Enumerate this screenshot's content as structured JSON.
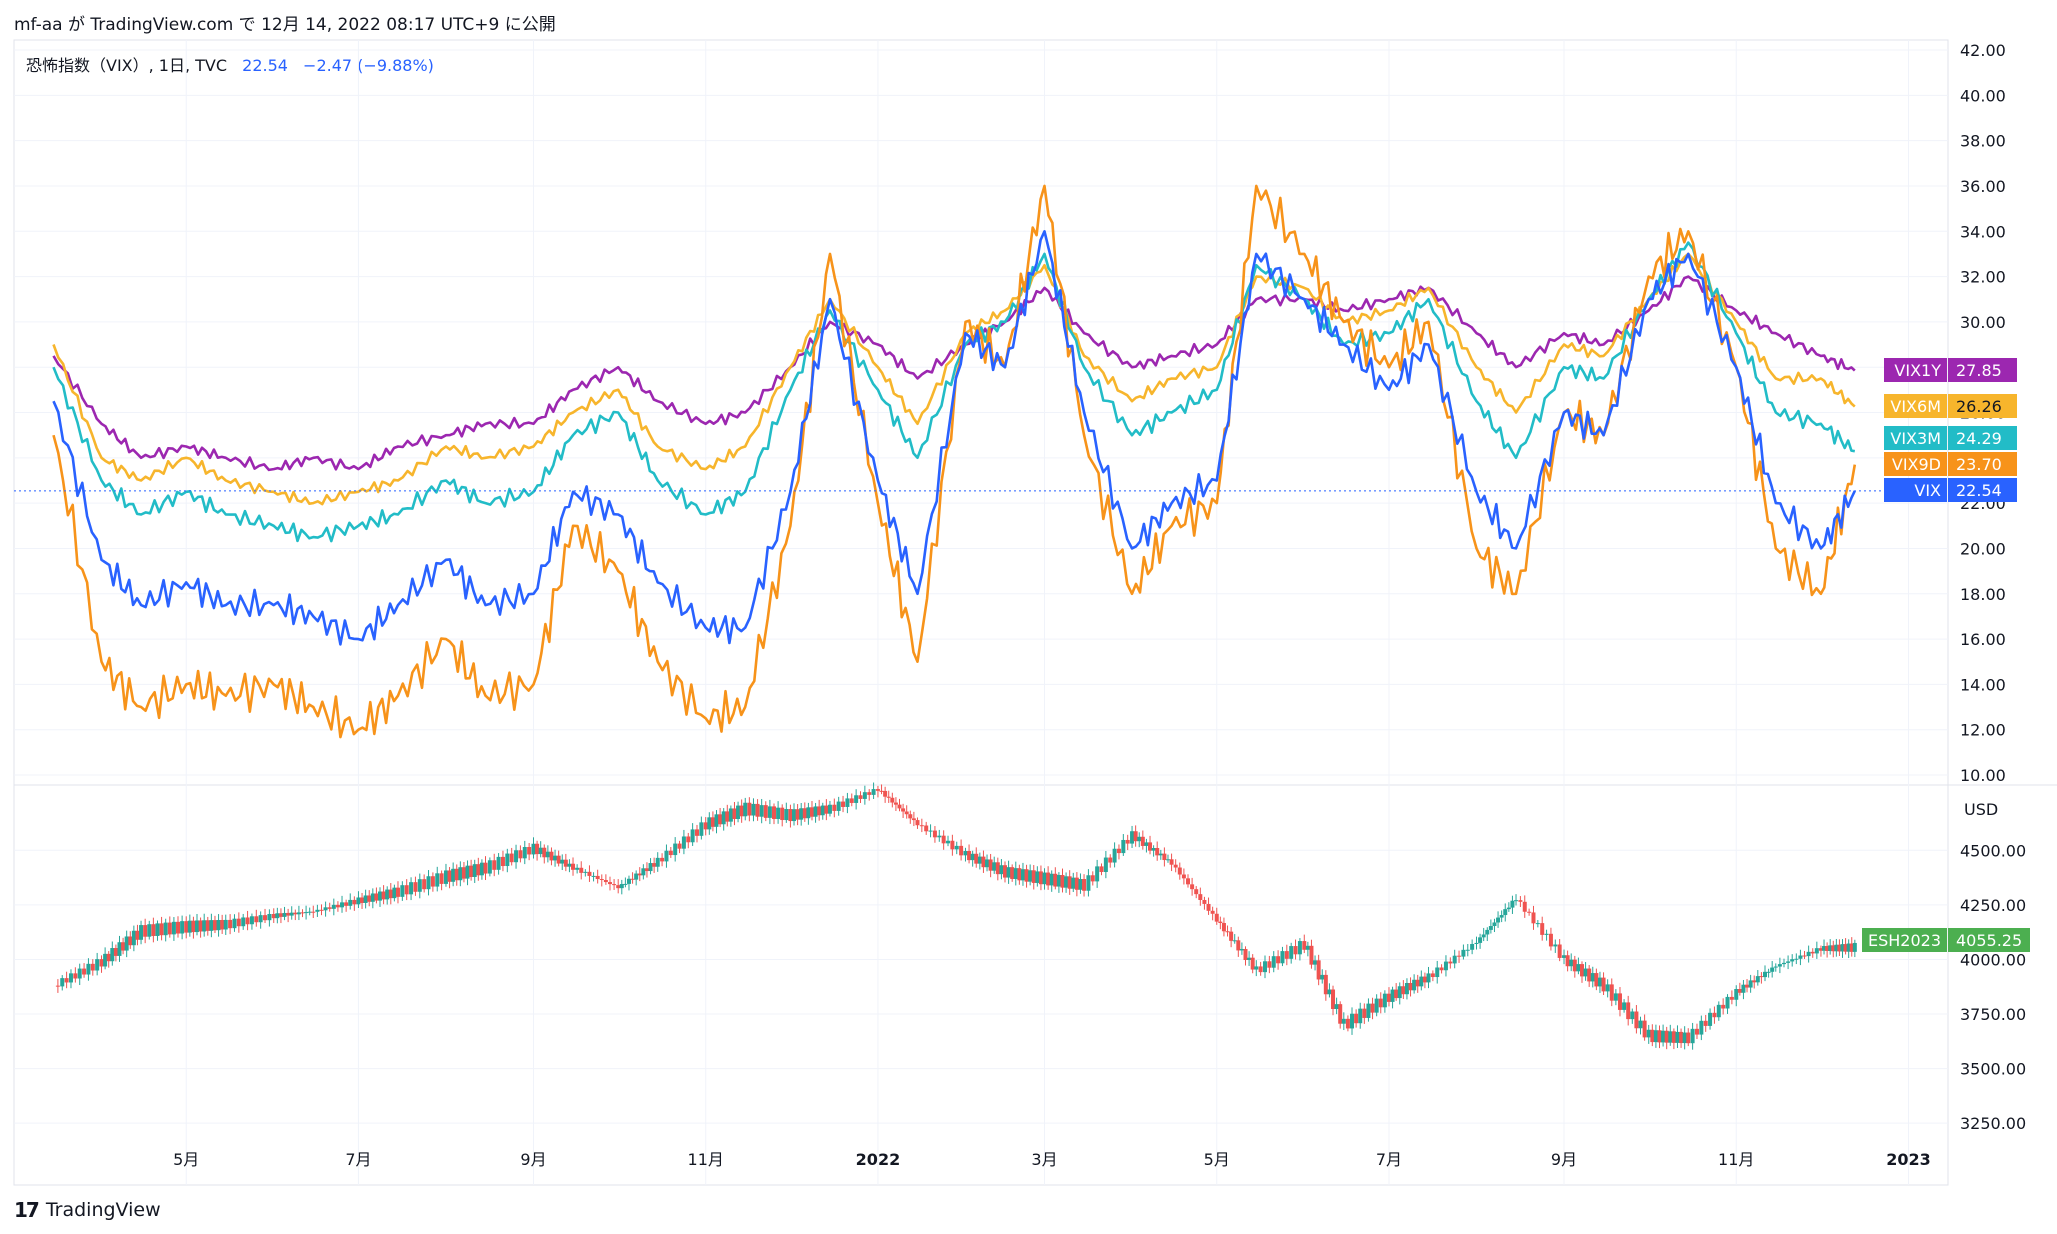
{
  "header": {
    "published_by": "mf-aa が TradingView.com で 12月 14, 2022 08:17 UTC+9 に公開"
  },
  "legend": {
    "name": "恐怖指数（VIX）, 1日, TVC",
    "last": "22.54",
    "change": "−2.47 (−9.88%)"
  },
  "footer": {
    "brand": "TradingView",
    "logo_glyph": "17"
  },
  "chart_data": [
    {
      "type": "line",
      "title": "恐怖指数（VIX）, 1日, TVC",
      "x": [
        "2021-03-15",
        "2021-04-01",
        "2021-04-15",
        "2021-05-01",
        "2021-05-15",
        "2021-06-01",
        "2021-06-15",
        "2021-07-01",
        "2021-07-15",
        "2021-08-01",
        "2021-08-15",
        "2021-09-01",
        "2021-09-15",
        "2021-10-01",
        "2021-10-15",
        "2021-11-01",
        "2021-11-15",
        "2021-12-01",
        "2021-12-15",
        "2022-01-01",
        "2022-01-15",
        "2022-02-01",
        "2022-02-15",
        "2022-03-01",
        "2022-03-15",
        "2022-04-01",
        "2022-04-15",
        "2022-05-01",
        "2022-05-15",
        "2022-06-01",
        "2022-06-15",
        "2022-07-01",
        "2022-07-15",
        "2022-08-01",
        "2022-08-15",
        "2022-09-01",
        "2022-09-15",
        "2022-10-01",
        "2022-10-15",
        "2022-11-01",
        "2022-11-15",
        "2022-12-01",
        "2022-12-13"
      ],
      "series": [
        {
          "name": "VIX1Y",
          "color": "#9c27b0",
          "last": "27.85",
          "values": [
            28.5,
            25.5,
            24.0,
            24.5,
            24.0,
            23.5,
            24.0,
            23.5,
            24.5,
            25.0,
            25.5,
            25.5,
            27.0,
            28.0,
            26.5,
            25.5,
            26.0,
            28.0,
            30.0,
            29.0,
            27.5,
            29.0,
            30.0,
            31.5,
            29.5,
            28.0,
            28.5,
            29.0,
            31.0,
            31.0,
            30.5,
            31.0,
            31.5,
            29.5,
            28.0,
            29.5,
            29.0,
            30.5,
            32.0,
            30.5,
            29.5,
            28.5,
            27.85
          ]
        },
        {
          "name": "VIX6M",
          "color": "#f7b52c",
          "last": "26.26",
          "values": [
            29.0,
            24.0,
            23.0,
            24.0,
            23.0,
            22.5,
            22.0,
            22.5,
            23.0,
            24.5,
            24.0,
            24.5,
            26.0,
            27.0,
            24.5,
            23.5,
            24.5,
            28.0,
            31.0,
            28.0,
            25.5,
            29.5,
            30.5,
            32.5,
            28.5,
            26.5,
            27.5,
            28.0,
            32.0,
            31.5,
            30.0,
            30.5,
            31.5,
            28.0,
            26.0,
            29.0,
            28.5,
            31.0,
            33.0,
            30.0,
            27.5,
            27.5,
            26.26
          ]
        },
        {
          "name": "VIX3M",
          "color": "#22bcc7",
          "last": "24.29",
          "values": [
            28.0,
            23.0,
            21.5,
            22.5,
            21.5,
            21.0,
            20.5,
            21.0,
            21.5,
            23.0,
            22.0,
            22.5,
            25.0,
            26.0,
            23.0,
            21.5,
            22.5,
            27.0,
            30.5,
            27.0,
            24.0,
            29.0,
            30.0,
            33.0,
            28.0,
            25.0,
            26.0,
            27.0,
            32.5,
            31.0,
            29.0,
            29.5,
            31.0,
            26.5,
            24.0,
            28.0,
            27.5,
            31.0,
            33.5,
            29.5,
            26.0,
            25.5,
            24.29
          ]
        },
        {
          "name": "VIX9D",
          "color": "#f7931a",
          "last": "23.70",
          "values": [
            25.0,
            15.0,
            13.0,
            14.0,
            13.5,
            14.0,
            13.0,
            12.0,
            13.5,
            16.0,
            13.5,
            14.0,
            21.0,
            19.0,
            15.0,
            12.5,
            13.0,
            21.0,
            33.0,
            22.0,
            15.0,
            30.0,
            28.0,
            36.0,
            25.0,
            18.0,
            21.0,
            22.0,
            36.0,
            33.0,
            30.0,
            28.0,
            30.0,
            20.0,
            18.0,
            26.0,
            25.0,
            32.0,
            34.0,
            28.0,
            20.0,
            18.0,
            23.7
          ]
        },
        {
          "name": "VIX",
          "color": "#2962ff",
          "last": "22.54",
          "values": [
            26.5,
            19.5,
            17.5,
            18.5,
            17.5,
            17.5,
            17.0,
            16.0,
            17.5,
            19.5,
            17.5,
            18.0,
            22.5,
            21.5,
            18.5,
            16.5,
            16.5,
            22.5,
            31.0,
            23.0,
            18.0,
            29.5,
            28.0,
            34.0,
            26.0,
            20.0,
            22.0,
            23.0,
            33.0,
            31.0,
            29.0,
            27.0,
            29.0,
            22.5,
            20.0,
            26.0,
            25.0,
            31.0,
            33.0,
            28.0,
            22.0,
            20.0,
            22.54
          ]
        }
      ],
      "ylim": [
        10,
        42
      ],
      "yticks": [
        "42.00",
        "40.00",
        "38.00",
        "36.00",
        "34.00",
        "32.00",
        "30.00",
        "28.00",
        "26.00",
        "24.00",
        "22.00",
        "20.00",
        "18.00",
        "16.00",
        "14.00",
        "12.00",
        "10.00"
      ]
    },
    {
      "type": "candlestick",
      "series_name": "ESH2023",
      "last": "4055.25",
      "unit": "USD",
      "x": [
        "2021-03-15",
        "2021-04-01",
        "2021-04-15",
        "2021-05-01",
        "2021-05-15",
        "2021-06-01",
        "2021-06-15",
        "2021-07-01",
        "2021-07-15",
        "2021-08-01",
        "2021-08-15",
        "2021-09-01",
        "2021-09-15",
        "2021-10-01",
        "2021-10-15",
        "2021-11-01",
        "2021-11-15",
        "2021-12-01",
        "2021-12-15",
        "2022-01-01",
        "2022-01-15",
        "2022-02-01",
        "2022-02-15",
        "2022-03-01",
        "2022-03-15",
        "2022-04-01",
        "2022-04-15",
        "2022-05-01",
        "2022-05-15",
        "2022-06-01",
        "2022-06-15",
        "2022-07-01",
        "2022-07-15",
        "2022-08-01",
        "2022-08-15",
        "2022-09-01",
        "2022-09-15",
        "2022-10-01",
        "2022-10-15",
        "2022-11-01",
        "2022-11-15",
        "2022-12-01",
        "2022-12-13"
      ],
      "values": [
        3880,
        3990,
        4130,
        4150,
        4160,
        4200,
        4220,
        4270,
        4310,
        4380,
        4420,
        4510,
        4420,
        4330,
        4450,
        4620,
        4690,
        4660,
        4690,
        4780,
        4620,
        4480,
        4400,
        4370,
        4340,
        4570,
        4440,
        4180,
        3950,
        4070,
        3700,
        3830,
        3920,
        4080,
        4280,
        4000,
        3880,
        3650,
        3640,
        3850,
        3970,
        4050,
        4055
      ]
    }
  ],
  "xaxis": {
    "ticks": [
      {
        "label": "5月",
        "date": "2021-05-01"
      },
      {
        "label": "7月",
        "date": "2021-07-01"
      },
      {
        "label": "9月",
        "date": "2021-09-01"
      },
      {
        "label": "11月",
        "date": "2021-11-01"
      },
      {
        "label": "2022",
        "date": "2022-01-01"
      },
      {
        "label": "3月",
        "date": "2022-03-01"
      },
      {
        "label": "5月",
        "date": "2022-05-01"
      },
      {
        "label": "7月",
        "date": "2022-07-01"
      },
      {
        "label": "9月",
        "date": "2022-09-01"
      },
      {
        "label": "11月",
        "date": "2022-11-01"
      },
      {
        "label": "2023",
        "date": "2023-01-01"
      }
    ]
  },
  "price_axis": {
    "label": "USD",
    "ticks": [
      "4500.00",
      "4250.00",
      "4000.00",
      "3750.00",
      "3500.00",
      "3250.00"
    ],
    "ylim": [
      3150,
      4790
    ]
  },
  "colors": {
    "up": "#26a69a",
    "down": "#ef5350",
    "grid": "#f0f3fa",
    "border": "#e0e3eb",
    "label_text": "#131722"
  }
}
